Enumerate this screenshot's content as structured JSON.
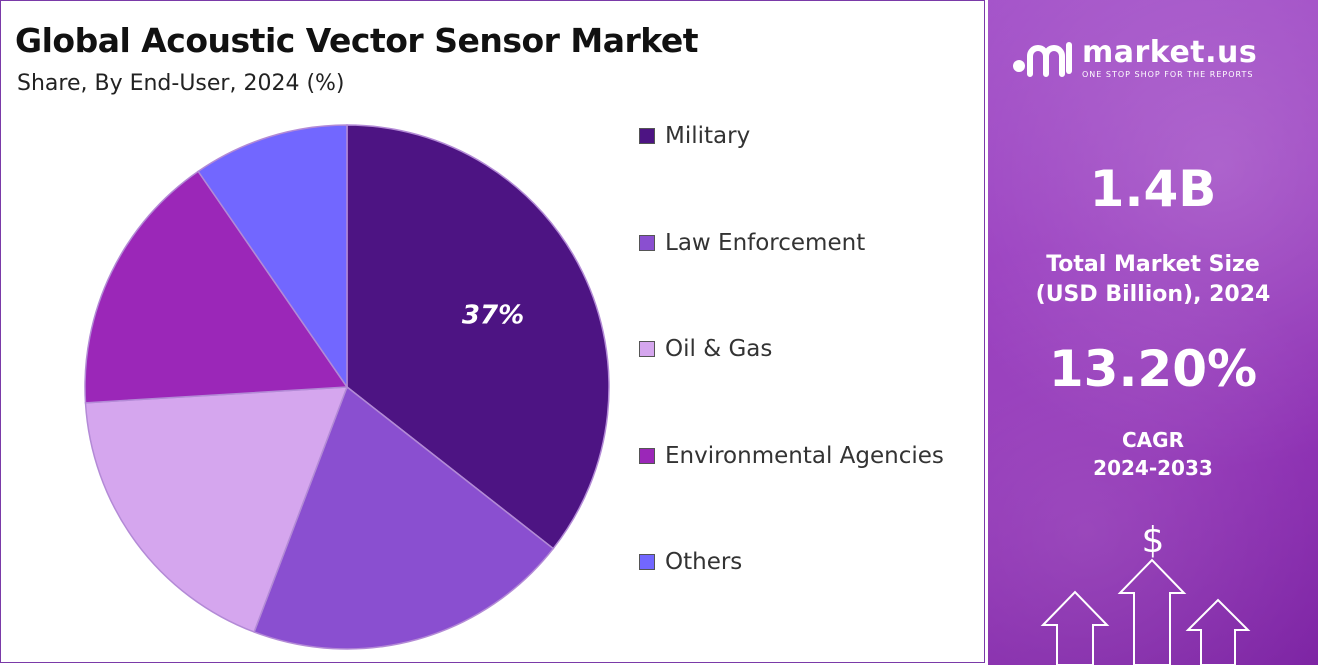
{
  "chart_data": {
    "type": "pie",
    "title": "Global Acoustic Vector Sensor Market",
    "subtitle": "Share, By End-User, 2024 (%)",
    "categories": [
      "Military",
      "Law Enforcement",
      "Oil & Gas",
      "Environmental Agencies",
      "Others"
    ],
    "values": [
      37,
      21,
      19,
      17,
      10
    ],
    "colors": [
      "#4d1483",
      "#8a4fd0",
      "#d5a6ee",
      "#9b27b8",
      "#7267ff"
    ],
    "data_labels": [
      "37%",
      "",
      "",
      "",
      ""
    ],
    "legend_position": "right",
    "start_angle_deg": 0,
    "direction": "clockwise"
  },
  "sidebar": {
    "brand_name": "market.us",
    "brand_tagline": "ONE STOP SHOP FOR THE REPORTS",
    "market_size_value": "1.4B",
    "market_size_label_line1": "Total Market Size",
    "market_size_label_line2": "(USD Billion), 2024",
    "cagr_value": "13.20%",
    "cagr_label_line1": "CAGR",
    "cagr_label_line2": "2024-2033",
    "currency_symbol": "$"
  }
}
